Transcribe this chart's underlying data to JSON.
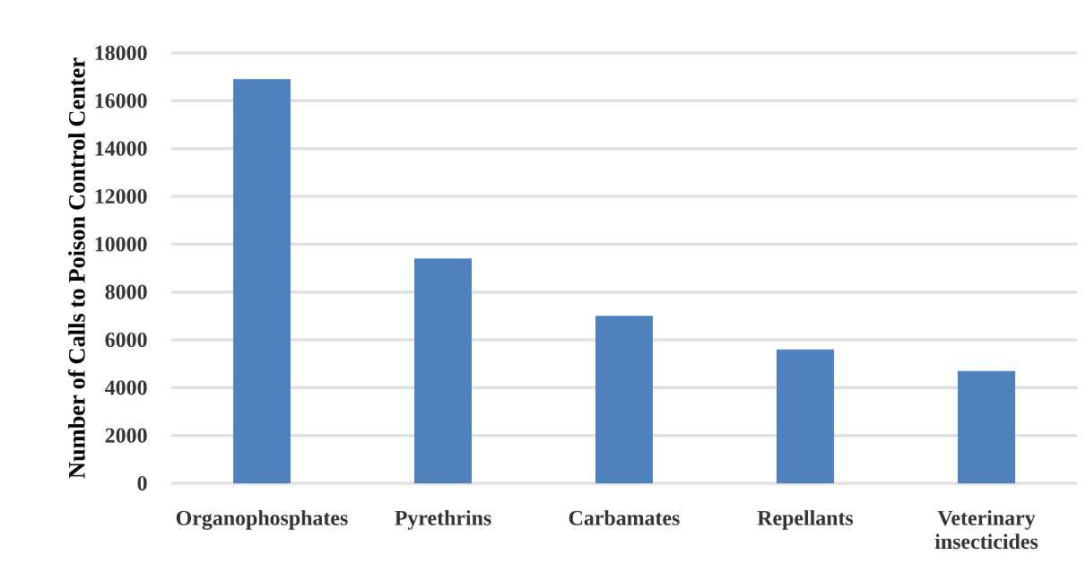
{
  "chart_data": {
    "type": "bar",
    "ylabel": "Number of Calls to Poison Control Center",
    "categories": [
      "Organophosphates",
      "Pyrethrins",
      "Carbamates",
      "Repellants",
      "Veterinary insecticides"
    ],
    "values": [
      16900,
      9400,
      7000,
      5600,
      4700
    ],
    "color": "#4f81bd",
    "ylim": [
      0,
      18000
    ],
    "yticks": [
      0,
      2000,
      4000,
      6000,
      8000,
      10000,
      12000,
      14000,
      16000,
      18000
    ],
    "grid": "y"
  }
}
